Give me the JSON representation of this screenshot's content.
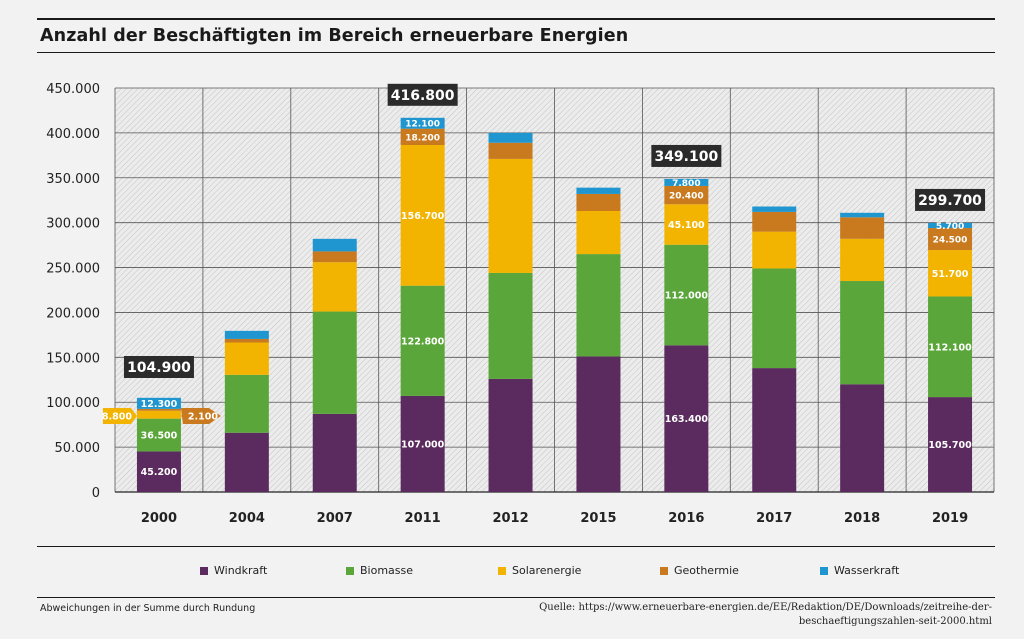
{
  "title": "Anzahl der Beschäftigten im Bereich erneuerbare Energien",
  "footnote": "Abweichungen in der Summe durch Rundung",
  "source_line1": "Quelle: https://www.erneuerbare-energien.de/EE/Redaktion/DE/Downloads/zeitreihe-der-",
  "source_line2": "beschaeftigungszahlen-seit-2000.html",
  "colors": {
    "Windkraft": "#5b2a5e",
    "Biomasse": "#5aa63a",
    "Solarenergie": "#f2b400",
    "Geothermie": "#c97a1f",
    "Wasserkraft": "#1f96cf",
    "total_box": "#2b2b2b"
  },
  "chart_data": {
    "type": "bar",
    "stacked": true,
    "categories": [
      "2000",
      "2004",
      "2007",
      "2011",
      "2012",
      "2015",
      "2016",
      "2017",
      "2018",
      "2019"
    ],
    "series": [
      {
        "name": "Windkraft",
        "values": [
          45200,
          66000,
          87000,
          107000,
          126000,
          151000,
          163400,
          138000,
          120000,
          105700
        ]
      },
      {
        "name": "Biomasse",
        "values": [
          36500,
          64500,
          114000,
          122800,
          118000,
          114000,
          112000,
          111000,
          115000,
          112100
        ]
      },
      {
        "name": "Solarenergie",
        "values": [
          8800,
          36000,
          55000,
          156700,
          127000,
          48000,
          45100,
          41000,
          47000,
          51700
        ]
      },
      {
        "name": "Geothermie",
        "values": [
          2100,
          4000,
          12000,
          18200,
          18000,
          19000,
          20400,
          22000,
          24000,
          24500
        ]
      },
      {
        "name": "Wasserkraft",
        "values": [
          12300,
          9000,
          14000,
          12100,
          11000,
          7000,
          7800,
          6000,
          5000,
          5700
        ]
      }
    ],
    "data_labels": {
      "2000": [
        "45.200",
        "36.500",
        "8.800",
        "2.100",
        "12.300"
      ],
      "2011": [
        "107.000",
        "122.800",
        "156.700",
        "18.200",
        "12.100"
      ],
      "2016": [
        "163.400",
        "112.000",
        "45.100",
        "20.400",
        "7.800"
      ],
      "2019": [
        "105.700",
        "112.100",
        "51.700",
        "24.500",
        "5.700"
      ]
    },
    "totals": [
      {
        "category": "2000",
        "label": "104.900"
      },
      {
        "category": "2011",
        "label": "416.800"
      },
      {
        "category": "2016",
        "label": "349.100"
      },
      {
        "category": "2019",
        "label": "299.700"
      }
    ],
    "ylim": [
      0,
      450000
    ],
    "yticks": [
      0,
      50000,
      100000,
      150000,
      200000,
      250000,
      300000,
      350000,
      400000,
      450000
    ],
    "ytick_labels": [
      "0",
      "50.000",
      "100.000",
      "150.000",
      "200.000",
      "250.000",
      "300.000",
      "350.000",
      "400.000",
      "450.000"
    ],
    "xlabel": "",
    "ylabel": "",
    "grid": true,
    "legend_position": "bottom"
  }
}
